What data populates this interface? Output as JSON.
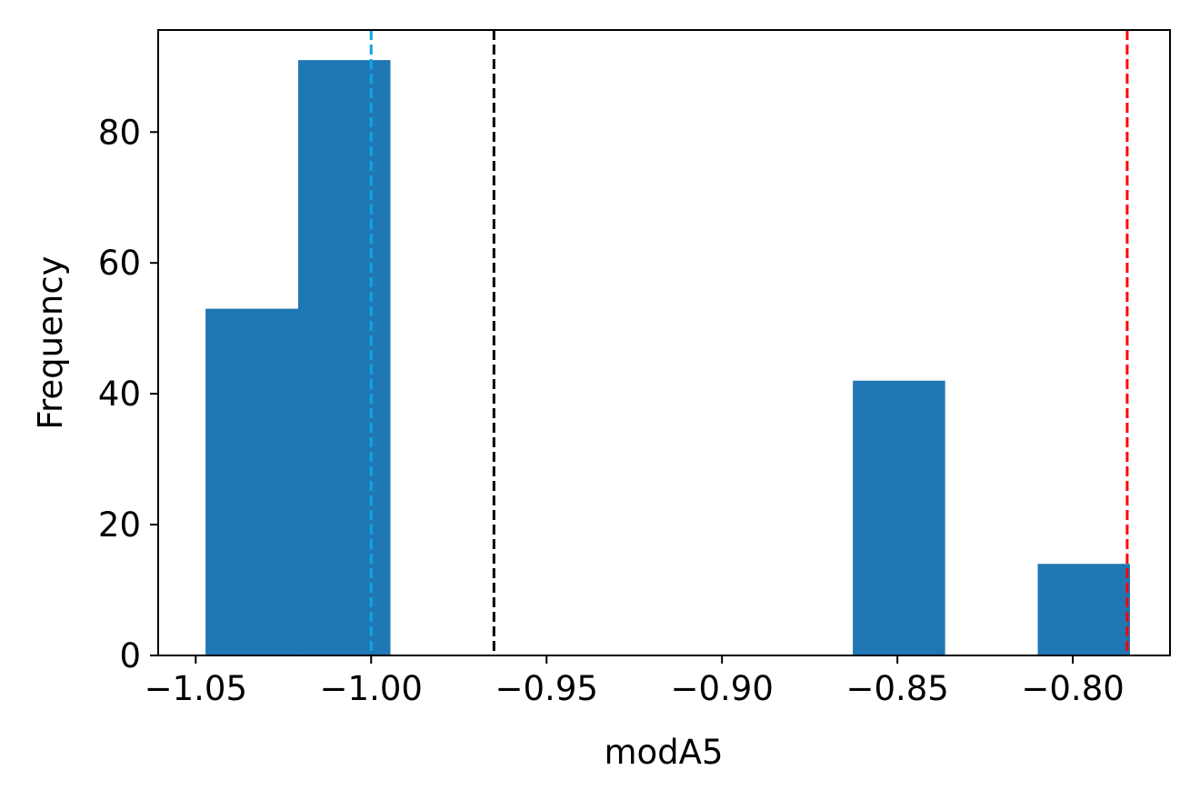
{
  "chart_data": {
    "type": "bar",
    "subtype": "histogram",
    "title": "",
    "xlabel": "modA5",
    "ylabel": "Frequency",
    "xlim": [
      -1.0607,
      -0.7723
    ],
    "ylim": [
      0,
      95.6
    ],
    "grid": false,
    "bins": [
      {
        "x0": -1.0472,
        "x1": -1.0208,
        "count": 53
      },
      {
        "x0": -1.0208,
        "x1": -0.9945,
        "count": 91
      },
      {
        "x0": -0.9945,
        "x1": -0.9681,
        "count": 0
      },
      {
        "x0": -0.9681,
        "x1": -0.9418,
        "count": 0
      },
      {
        "x0": -0.9418,
        "x1": -0.9154,
        "count": 0
      },
      {
        "x0": -0.9154,
        "x1": -0.8891,
        "count": 0
      },
      {
        "x0": -0.8891,
        "x1": -0.8627,
        "count": 0
      },
      {
        "x0": -0.8627,
        "x1": -0.8364,
        "count": 42
      },
      {
        "x0": -0.8364,
        "x1": -0.81,
        "count": 0
      },
      {
        "x0": -0.81,
        "x1": -0.7837,
        "count": 14
      }
    ],
    "bar_color": "#1f77b4",
    "reference_lines": [
      {
        "x": -1.0,
        "color": "#0ea5e0",
        "style": "dashed"
      },
      {
        "x": -0.965,
        "color": "#000000",
        "style": "dashed"
      },
      {
        "x": -0.7845,
        "color": "#ff0000",
        "style": "dashed"
      }
    ],
    "x_ticks": [
      {
        "value": -1.05,
        "label": "−1.05"
      },
      {
        "value": -1.0,
        "label": "−1.00"
      },
      {
        "value": -0.95,
        "label": "−0.95"
      },
      {
        "value": -0.9,
        "label": "−0.90"
      },
      {
        "value": -0.85,
        "label": "−0.85"
      },
      {
        "value": -0.8,
        "label": "−0.80"
      }
    ],
    "y_ticks": [
      {
        "value": 0,
        "label": "0"
      },
      {
        "value": 20,
        "label": "20"
      },
      {
        "value": 40,
        "label": "40"
      },
      {
        "value": 60,
        "label": "60"
      },
      {
        "value": 80,
        "label": "80"
      }
    ]
  }
}
